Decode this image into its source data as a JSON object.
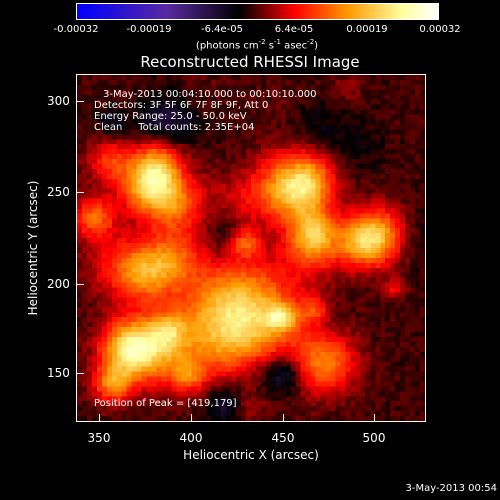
{
  "colorbar": {
    "ticks": [
      "-0.00032",
      "-0.00019",
      "-6.4e-05",
      "6.4e-05",
      "0.00019",
      "0.00032"
    ],
    "units_prefix": "(photons cm",
    "units_sup1": "-2",
    "units_mid": " s",
    "units_sup2": "-1",
    "units_suffix": " asec",
    "units_sup3": "-2",
    "units_close": ")"
  },
  "title": "Reconstructed RHESSI Image",
  "annotations": {
    "time_range": "3-May-2013 00:04:10.000 to 00:10:10.000",
    "detectors": "Detectors: 3F 5F 6F 7F 8F 9F, Att 0",
    "energy": "Energy Range: 25.0 - 50.0 keV",
    "clean": "Clean     Total counts: 2.35E+04",
    "peak": "Position of Peak = [419,179]"
  },
  "axes": {
    "xlabel": "Heliocentric X (arcsec)",
    "ylabel": "Heliocentric Y (arcsec)",
    "xticks": [
      "350",
      "400",
      "450",
      "500"
    ],
    "yticks": [
      "300",
      "250",
      "200",
      "150"
    ]
  },
  "timestamp": "3-May-2013 00:54",
  "colormap": {
    "stops": [
      "#0000ff",
      "#5a2aa0",
      "#000000",
      "#ff0000",
      "#ff9900",
      "#ffffa0",
      "#ffffff"
    ]
  }
}
